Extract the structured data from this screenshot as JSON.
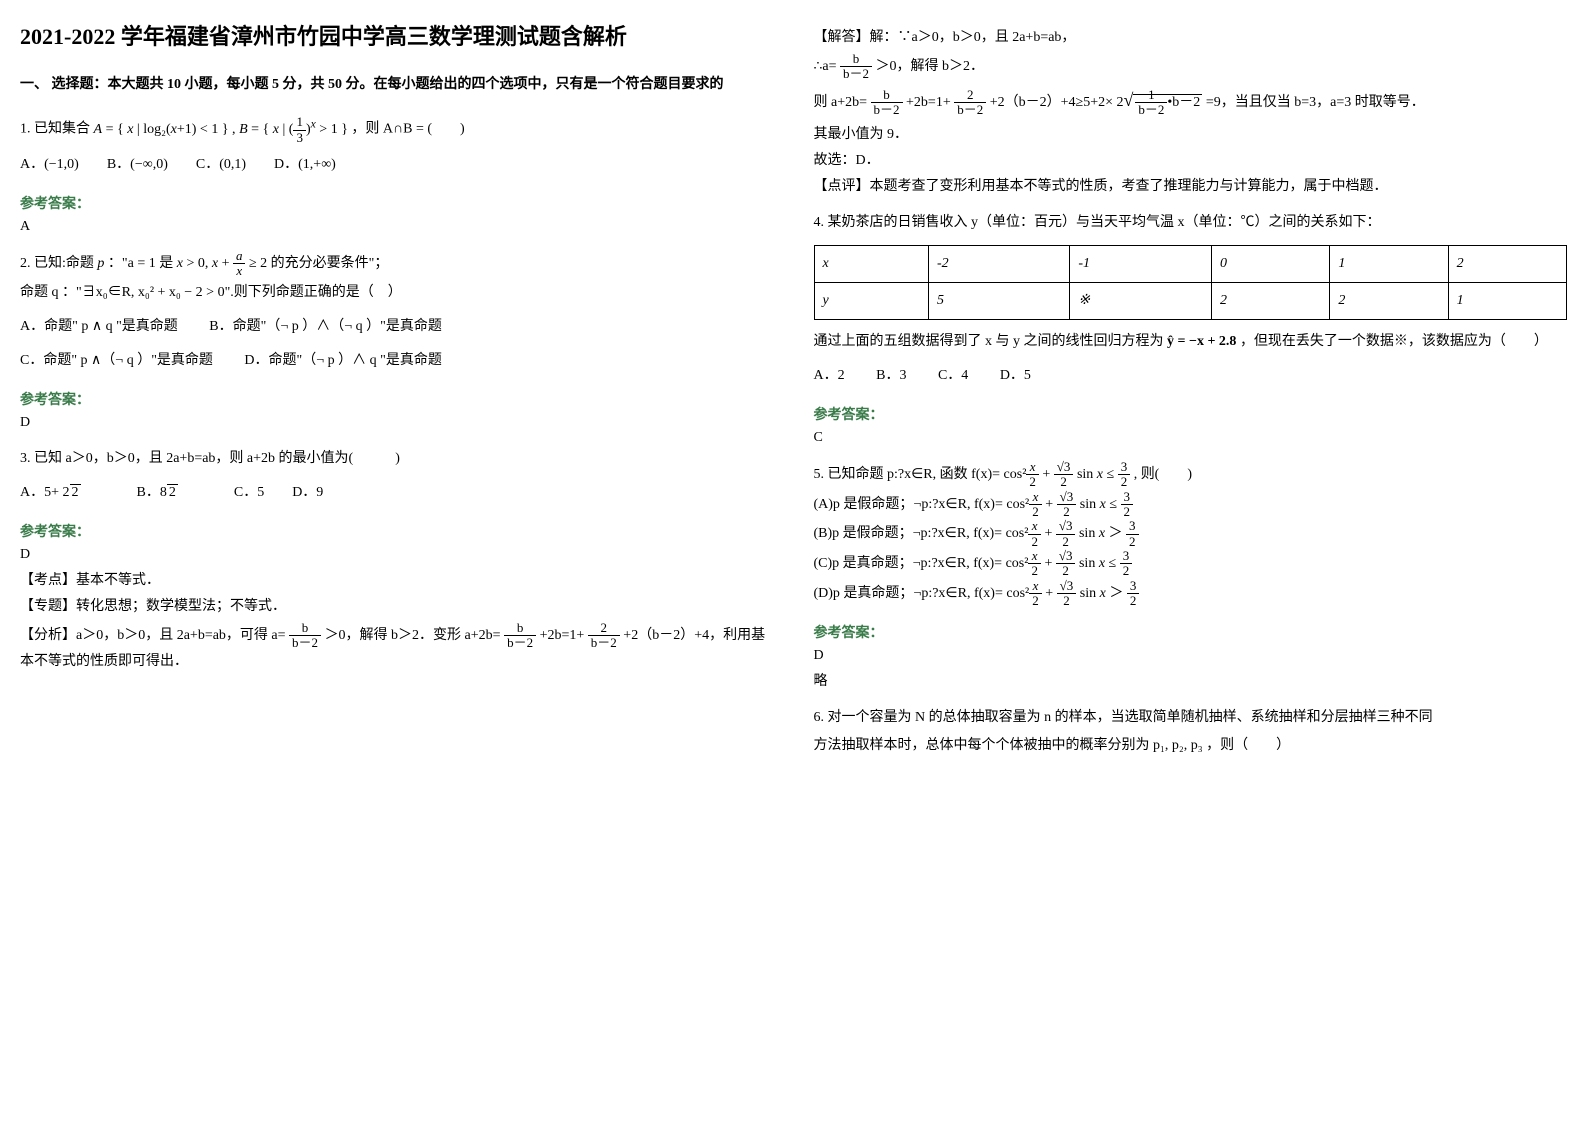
{
  "title": "2021-2022 学年福建省漳州市竹园中学高三数学理测试题含解析",
  "section_intro": "一、 选择题：本大题共 10 小题，每小题 5 分，共 50 分。在每小题给出的四个选项中，只有是一个符合题目要求的",
  "answer_label": "参考答案：",
  "left": {
    "q1": {
      "prefix": "1. 已知集合",
      "formula": "A = { x | log₂(x+1) < 1 } , B = { x | (1/3)ˣ > 1 }",
      "suffix": "，则 A∩B = (　　)",
      "opts": "A．(−1,0)　　B．(−∞,0)　　C．(0,1)　　D．(1,+∞)",
      "ans": "A"
    },
    "q2": {
      "line1_pre": "2. 已知:命题",
      "line1_mid": "：\"a = 1 是",
      "line1_formula": "x > 0, x + a/x ≥ 2",
      "line1_post": " 的充分必要条件\"；",
      "line2": "命题 q ：\"∃x₀∈R, x₀² + x₀ − 2 > 0\".则下列命题正确的是（　）",
      "optA": "A．命题\" p ∧ q \"是真命题",
      "optB": "B．命题\"（¬ p ）∧（¬ q ）\"是真命题",
      "optC": "C．命题\" p ∧（¬ q ）\"是真命题",
      "optD": "D．命题\"（¬ p ）∧ q \"是真命题",
      "ans": "D"
    },
    "q3": {
      "text": "3. 已知 a＞0，b＞0，且 2a+b=ab，则 a+2b 的最小值为(　　　)",
      "opts": "A．5+ 2√2　　B．8√2　　C．5　　D．9",
      "ans": "D",
      "kd": "【考点】基本不等式．",
      "zt": "【专题】转化思想；数学模型法；不等式．",
      "fx_pre": "【分析】a＞0，b＞0，且 2a+b=ab，可得 a=",
      "fx_mid1": "＞0，解得 b＞2．变形 a+2b=",
      "fx_mid2": "+2b=1+",
      "fx_post": "+2（b－2）+4，利用基本不等式的性质即可得出．"
    }
  },
  "right": {
    "jd_pre": "【解答】解：∵a＞0，b＞0，且 2a+b=ab，",
    "jd_line2_pre": "∴a=",
    "jd_line2_post": "＞0，解得 b＞2．",
    "jd_line3_pre": "则 a+2b=",
    "jd_line3_mid1": "+2b=1+",
    "jd_line3_mid2": "+2（b－2）+4≥5+2×",
    "jd_line3_post": "=9，当且仅当 b=3，a=3 时取等号．",
    "jd_line4": "其最小值为 9．",
    "jd_line5": "故选：D．",
    "dp": "【点评】本题考查了变形利用基本不等式的性质，考查了推理能力与计算能力，属于中档题．",
    "q4": {
      "text": "4. 某奶茶店的日销售收入 y（单位：百元）与当天平均气温 x（单位：℃）之间的关系如下：",
      "headers": [
        "x",
        "-2",
        "-1",
        "0",
        "1",
        "2"
      ],
      "row2": [
        "y",
        "5",
        "※",
        "2",
        "2",
        "1"
      ],
      "after_pre": "通过上面的五组数据得到了 x 与 y 之间的线性回归方程为",
      "after_eq": "ŷ = −x + 2.8",
      "after_post": "，但现在丢失了一个数据※，该数据应为（　　）",
      "opts": [
        "A．2",
        "B．3",
        "C．4",
        "D．5"
      ],
      "ans": "C"
    },
    "q5": {
      "pre": "5. 已知命题 p:?x∈R, 函数 f(x)=",
      "main_expr": "cos²(x/2) + (√3/2) sin x ≤ 3/2",
      "post": ", 则(　　)",
      "optA_pre": "(A)p 是假命题；¬p:?x∈R, f(x)=",
      "optA_expr": "cos²(x/2) + (√3/2) sin x ≤ 3/2",
      "optB_pre": "(B)p 是假命题；¬p:?x∈R, f(x)=",
      "optB_expr": "cos²(x/2) + (√3/2) sin x ＞ 3/2",
      "optC_pre": "(C)p 是真命题；¬p:?x∈R, f(x)=",
      "optC_expr": "cos²(x/2) + (√3/2) sin x ≤ 3/2",
      "optD_pre": "(D)p 是真命题；¬p:?x∈R, f(x)=",
      "optD_expr": "cos²(x/2) + (√3/2) sin x ＞ 3/2",
      "ans": "D",
      "note": "略"
    },
    "q6": {
      "text_pre": "6. 对一个容量为 N 的总体抽取容量为 n 的样本，当选取简单随机抽样、系统抽样和分层抽样三种不同",
      "text_post": "方法抽取样本时，总体中每个个体被抽中的概率分别为 p₁, p₂, p₃ ，则（　　）"
    }
  },
  "colors": {
    "text": "#000000",
    "answer_label": "#397b49",
    "background": "#ffffff",
    "border": "#000000"
  }
}
